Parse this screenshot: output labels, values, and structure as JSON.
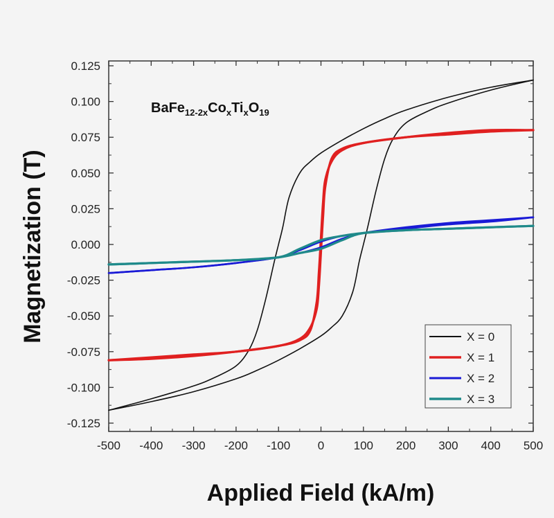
{
  "chart_data": {
    "type": "line",
    "title": "",
    "annotation": {
      "formula_parts": [
        {
          "text": "BaFe",
          "sub": false
        },
        {
          "text": "12-2x",
          "sub": true
        },
        {
          "text": "Co",
          "sub": false
        },
        {
          "text": "x",
          "sub": true
        },
        {
          "text": "Ti",
          "sub": false
        },
        {
          "text": "x",
          "sub": true
        },
        {
          "text": "O",
          "sub": false
        },
        {
          "text": "19",
          "sub": true
        }
      ]
    },
    "xlabel": "Applied Field (kA/m)",
    "ylabel": "Magnetization (T)",
    "xlim": [
      -500,
      500
    ],
    "ylim": [
      -0.13,
      0.13
    ],
    "xticks": [
      -500,
      -400,
      -300,
      -200,
      -100,
      0,
      100,
      200,
      300,
      400,
      500
    ],
    "xtick_labels": [
      "-500",
      "-400",
      "-300",
      "-200",
      "-100",
      "0",
      "100",
      "200",
      "300",
      "400",
      "500"
    ],
    "yticks": [
      0.125,
      0.1,
      0.075,
      0.05,
      0.025,
      0.0,
      -0.025,
      -0.05,
      -0.075,
      -0.1,
      -0.125
    ],
    "ytick_labels": [
      "0.125",
      "0.100",
      "0.075",
      "0.050",
      "0.025",
      "0.000",
      "-0.025",
      "-0.050",
      "-0.075",
      "-0.100",
      "-0.125"
    ],
    "grid": false,
    "legend_position": "bottom-right",
    "series": [
      {
        "name": "X = 0",
        "color": "#111111",
        "upper": {
          "x": [
            -500,
            -400,
            -300,
            -250,
            -200,
            -170,
            -150,
            -130,
            -110,
            -100,
            -90,
            -75,
            -50,
            -25,
            0,
            50,
            100,
            150,
            200,
            300,
            400,
            500
          ],
          "y": [
            -0.116,
            -0.108,
            -0.099,
            -0.093,
            -0.085,
            -0.074,
            -0.06,
            -0.038,
            -0.012,
            0.0,
            0.012,
            0.033,
            0.05,
            0.058,
            0.064,
            0.073,
            0.081,
            0.088,
            0.094,
            0.103,
            0.11,
            0.115
          ]
        },
        "lower": {
          "x": [
            -500,
            -400,
            -300,
            -200,
            -150,
            -100,
            -50,
            0,
            25,
            50,
            75,
            90,
            100,
            110,
            130,
            150,
            170,
            200,
            250,
            300,
            400,
            500
          ],
          "y": [
            -0.116,
            -0.11,
            -0.103,
            -0.094,
            -0.088,
            -0.081,
            -0.073,
            -0.064,
            -0.058,
            -0.05,
            -0.033,
            -0.012,
            0.0,
            0.012,
            0.038,
            0.06,
            0.074,
            0.085,
            0.093,
            0.099,
            0.108,
            0.115
          ]
        }
      },
      {
        "name": "X = 1",
        "color": "#e02020",
        "upper": {
          "x": [
            -500,
            -400,
            -300,
            -200,
            -100,
            -50,
            -25,
            -10,
            -5,
            0,
            5,
            10,
            25,
            50,
            100,
            200,
            300,
            400,
            500
          ],
          "y": [
            -0.081,
            -0.08,
            -0.078,
            -0.075,
            -0.071,
            -0.067,
            -0.06,
            -0.04,
            -0.02,
            0.005,
            0.03,
            0.045,
            0.058,
            0.066,
            0.071,
            0.075,
            0.077,
            0.079,
            0.08
          ]
        },
        "lower": {
          "x": [
            -500,
            -400,
            -300,
            -200,
            -100,
            -50,
            -25,
            -10,
            -5,
            0,
            5,
            10,
            25,
            50,
            100,
            200,
            300,
            400,
            500
          ],
          "y": [
            -0.081,
            -0.079,
            -0.077,
            -0.075,
            -0.071,
            -0.066,
            -0.058,
            -0.045,
            -0.03,
            -0.005,
            0.02,
            0.04,
            0.06,
            0.067,
            0.071,
            0.075,
            0.078,
            0.08,
            0.08
          ]
        }
      },
      {
        "name": "X = 2",
        "color": "#1a1ad6",
        "upper": {
          "x": [
            -500,
            -400,
            -300,
            -200,
            -100,
            -50,
            0,
            50,
            100,
            200,
            300,
            400,
            500
          ],
          "y": [
            -0.02,
            -0.018,
            -0.016,
            -0.013,
            -0.009,
            -0.004,
            0.002,
            0.006,
            0.008,
            0.011,
            0.014,
            0.016,
            0.019
          ]
        },
        "lower": {
          "x": [
            -500,
            -400,
            -300,
            -200,
            -100,
            -50,
            0,
            50,
            100,
            200,
            300,
            400,
            500
          ],
          "y": [
            -0.02,
            -0.018,
            -0.016,
            -0.013,
            -0.009,
            -0.006,
            -0.002,
            0.004,
            0.008,
            0.012,
            0.015,
            0.017,
            0.019
          ]
        }
      },
      {
        "name": "X = 3",
        "color": "#1f8a8a",
        "upper": {
          "x": [
            -500,
            -400,
            -300,
            -200,
            -100,
            -50,
            0,
            50,
            100,
            200,
            300,
            400,
            500
          ],
          "y": [
            -0.014,
            -0.013,
            -0.012,
            -0.011,
            -0.009,
            -0.003,
            0.003,
            0.006,
            0.008,
            0.01,
            0.011,
            0.012,
            0.013
          ]
        },
        "lower": {
          "x": [
            -500,
            -400,
            -300,
            -200,
            -100,
            -50,
            0,
            50,
            100,
            200,
            300,
            400,
            500
          ],
          "y": [
            -0.014,
            -0.013,
            -0.012,
            -0.011,
            -0.009,
            -0.006,
            -0.003,
            0.003,
            0.008,
            0.01,
            0.011,
            0.012,
            0.013
          ]
        }
      }
    ]
  }
}
